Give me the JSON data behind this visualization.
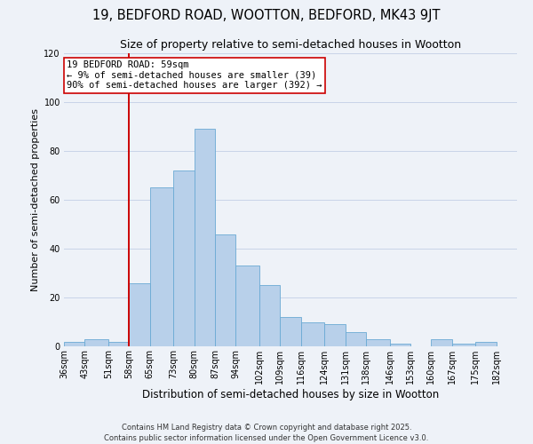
{
  "title": "19, BEDFORD ROAD, WOOTTON, BEDFORD, MK43 9JT",
  "subtitle": "Size of property relative to semi-detached houses in Wootton",
  "xlabel": "Distribution of semi-detached houses by size in Wootton",
  "ylabel": "Number of semi-detached properties",
  "bin_labels": [
    "36sqm",
    "43sqm",
    "51sqm",
    "58sqm",
    "65sqm",
    "73sqm",
    "80sqm",
    "87sqm",
    "94sqm",
    "102sqm",
    "109sqm",
    "116sqm",
    "124sqm",
    "131sqm",
    "138sqm",
    "146sqm",
    "153sqm",
    "160sqm",
    "167sqm",
    "175sqm",
    "182sqm"
  ],
  "bin_edges": [
    36,
    43,
    51,
    58,
    65,
    73,
    80,
    87,
    94,
    102,
    109,
    116,
    124,
    131,
    138,
    146,
    153,
    160,
    167,
    175,
    182,
    189
  ],
  "counts": [
    2,
    3,
    2,
    26,
    65,
    72,
    89,
    46,
    33,
    25,
    12,
    10,
    9,
    6,
    3,
    1,
    0,
    3,
    1,
    2,
    0
  ],
  "bar_color": "#b8d0ea",
  "bar_edgecolor": "#6aaad4",
  "vline_x": 58,
  "vline_color": "#cc0000",
  "annotation_line1": "19 BEDFORD ROAD: 59sqm",
  "annotation_line2": "← 9% of semi-detached houses are smaller (39)",
  "annotation_line3": "90% of semi-detached houses are larger (392) →",
  "annotation_box_edgecolor": "#cc0000",
  "ylim": [
    0,
    120
  ],
  "yticks": [
    0,
    20,
    40,
    60,
    80,
    100,
    120
  ],
  "grid_color": "#c8d4e8",
  "background_color": "#eef2f8",
  "footer": "Contains HM Land Registry data © Crown copyright and database right 2025.\nContains public sector information licensed under the Open Government Licence v3.0.",
  "title_fontsize": 10.5,
  "subtitle_fontsize": 9,
  "xlabel_fontsize": 8.5,
  "ylabel_fontsize": 8,
  "tick_fontsize": 7,
  "annotation_fontsize": 7.5,
  "footer_fontsize": 6
}
